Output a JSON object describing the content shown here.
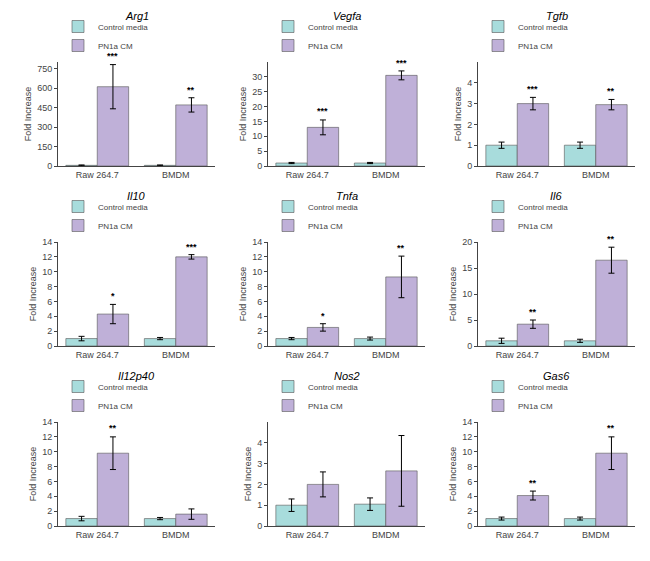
{
  "chart_data": [
    {
      "type": "bar",
      "title": "Arg1",
      "ylabel": "Fold Increase",
      "categories": [
        "Raw 264.7",
        "BMDM"
      ],
      "series": [
        {
          "name": "Control media",
          "color": "#A8DCDC",
          "values": [
            5,
            5
          ],
          "errors": [
            3,
            3
          ]
        },
        {
          "name": "PN1a CM",
          "color": "#BFB0D8",
          "values": [
            610,
            470
          ],
          "errors": [
            170,
            55
          ]
        }
      ],
      "ylim": [
        0,
        800
      ],
      "yticks": [
        0,
        150,
        300,
        450,
        600,
        750
      ],
      "grid": false,
      "legend": "upper left",
      "annotations": [
        {
          "text": "***",
          "category": "Raw 264.7",
          "series": "PN1a CM",
          "y": 790
        },
        {
          "text": "**",
          "category": "BMDM",
          "series": "PN1a CM",
          "y": 530
        }
      ]
    },
    {
      "type": "bar",
      "title": "Vegfa",
      "ylabel": "Fold Increase",
      "categories": [
        "Raw 264.7",
        "BMDM"
      ],
      "series": [
        {
          "name": "Control media",
          "color": "#A8DCDC",
          "values": [
            1,
            1
          ],
          "errors": [
            0.2,
            0.2
          ]
        },
        {
          "name": "PN1a CM",
          "color": "#BFB0D8",
          "values": [
            13,
            30.5
          ],
          "errors": [
            2.5,
            1.5
          ]
        }
      ],
      "ylim": [
        0,
        35
      ],
      "yticks": [
        0,
        5,
        10,
        15,
        20,
        25,
        30
      ],
      "grid": false,
      "legend": "upper left",
      "annotations": [
        {
          "text": "***",
          "category": "Raw 264.7",
          "series": "PN1a CM",
          "y": 16.2
        },
        {
          "text": "***",
          "category": "BMDM",
          "series": "PN1a CM",
          "y": 32.3
        }
      ]
    },
    {
      "type": "bar",
      "title": "Tgfb",
      "ylabel": "Fold Increase",
      "categories": [
        "Raw 264.7",
        "BMDM"
      ],
      "series": [
        {
          "name": "Control media",
          "color": "#A8DCDC",
          "values": [
            1.0,
            1.0
          ],
          "errors": [
            0.15,
            0.15
          ]
        },
        {
          "name": "PN1a CM",
          "color": "#BFB0D8",
          "values": [
            3.0,
            2.95
          ],
          "errors": [
            0.3,
            0.25
          ]
        }
      ],
      "ylim": [
        0,
        5
      ],
      "yticks": [
        0,
        1,
        2,
        3,
        4
      ],
      "grid": false,
      "legend": "upper left",
      "annotations": [
        {
          "text": "***",
          "category": "Raw 264.7",
          "series": "PN1a CM",
          "y": 3.38
        },
        {
          "text": "**",
          "category": "BMDM",
          "series": "PN1a CM",
          "y": 3.27
        }
      ]
    },
    {
      "type": "bar",
      "title": "Il10",
      "ylabel": "Fold Increase",
      "categories": [
        "Raw 264.7",
        "BMDM"
      ],
      "series": [
        {
          "name": "Control media",
          "color": "#A8DCDC",
          "values": [
            1,
            1
          ],
          "errors": [
            0.3,
            0.15
          ]
        },
        {
          "name": "PN1a CM",
          "color": "#BFB0D8",
          "values": [
            4.3,
            12.0
          ],
          "errors": [
            1.3,
            0.3
          ]
        }
      ],
      "ylim": [
        0,
        14
      ],
      "yticks": [
        0,
        2,
        4,
        6,
        8,
        10,
        12,
        14
      ],
      "grid": false,
      "legend": "upper left",
      "annotations": [
        {
          "text": "*",
          "category": "Raw 264.7",
          "series": "PN1a CM",
          "y": 5.85
        },
        {
          "text": "***",
          "category": "BMDM",
          "series": "PN1a CM",
          "y": 12.38
        }
      ]
    },
    {
      "type": "bar",
      "title": "Tnfa",
      "ylabel": "Fold Increase",
      "categories": [
        "Raw 264.7",
        "BMDM"
      ],
      "series": [
        {
          "name": "Control media",
          "color": "#A8DCDC",
          "values": [
            1,
            1
          ],
          "errors": [
            0.15,
            0.2
          ]
        },
        {
          "name": "PN1a CM",
          "color": "#BFB0D8",
          "values": [
            2.5,
            9.3
          ],
          "errors": [
            0.5,
            2.8
          ]
        }
      ],
      "ylim": [
        0,
        14
      ],
      "yticks": [
        0,
        2,
        4,
        6,
        8,
        10,
        12,
        14
      ],
      "grid": false,
      "legend": "upper left",
      "annotations": [
        {
          "text": "*",
          "category": "Raw 264.7",
          "series": "PN1a CM",
          "y": 3.1
        },
        {
          "text": "**",
          "category": "BMDM",
          "series": "PN1a CM",
          "y": 12.2
        }
      ]
    },
    {
      "type": "bar",
      "title": "Il6",
      "ylabel": "Fold Increase",
      "categories": [
        "Raw 264.7",
        "BMDM"
      ],
      "series": [
        {
          "name": "Control media",
          "color": "#A8DCDC",
          "values": [
            1,
            1
          ],
          "errors": [
            0.5,
            0.3
          ]
        },
        {
          "name": "PN1a CM",
          "color": "#BFB0D8",
          "values": [
            4.2,
            16.5
          ],
          "errors": [
            0.8,
            2.5
          ]
        }
      ],
      "ylim": [
        0,
        20
      ],
      "yticks": [
        0,
        5,
        10,
        15,
        20
      ],
      "grid": false,
      "legend": "upper left",
      "annotations": [
        {
          "text": "**",
          "category": "Raw 264.7",
          "series": "PN1a CM",
          "y": 5.2
        },
        {
          "text": "**",
          "category": "BMDM",
          "series": "PN1a CM",
          "y": 19.3
        }
      ]
    },
    {
      "type": "bar",
      "title": "Il12p40",
      "ylabel": "Fold Increase",
      "categories": [
        "Raw 264.7",
        "BMDM"
      ],
      "series": [
        {
          "name": "Control media",
          "color": "#A8DCDC",
          "values": [
            1,
            1
          ],
          "errors": [
            0.3,
            0.15
          ]
        },
        {
          "name": "PN1a CM",
          "color": "#BFB0D8",
          "values": [
            9.8,
            1.6
          ],
          "errors": [
            2.2,
            0.7
          ]
        }
      ],
      "ylim": [
        0,
        14
      ],
      "yticks": [
        0,
        2,
        4,
        6,
        8,
        10,
        12,
        14
      ],
      "grid": false,
      "legend": "upper left",
      "annotations": [
        {
          "text": "**",
          "category": "Raw 264.7",
          "series": "PN1a CM",
          "y": 12.2
        }
      ]
    },
    {
      "type": "bar",
      "title": "Nos2",
      "ylabel": "Fold Increase",
      "categories": [
        "Raw 264.7",
        "BMDM"
      ],
      "series": [
        {
          "name": "Control media",
          "color": "#A8DCDC",
          "values": [
            1.0,
            1.05
          ],
          "errors": [
            0.3,
            0.3
          ]
        },
        {
          "name": "PN1a CM",
          "color": "#BFB0D8",
          "values": [
            2.0,
            2.65
          ],
          "errors": [
            0.6,
            1.7
          ]
        }
      ],
      "ylim": [
        0,
        5
      ],
      "yticks": [
        0,
        1,
        2,
        3,
        4
      ],
      "grid": false,
      "legend": "upper left"
    },
    {
      "type": "bar",
      "title": "Gas6",
      "ylabel": "Fold Increase",
      "categories": [
        "Raw 264.7",
        "BMDM"
      ],
      "series": [
        {
          "name": "Control media",
          "color": "#A8DCDC",
          "values": [
            1,
            1
          ],
          "errors": [
            0.2,
            0.2
          ]
        },
        {
          "name": "PN1a CM",
          "color": "#BFB0D8",
          "values": [
            4.1,
            9.8
          ],
          "errors": [
            0.6,
            2.2
          ]
        }
      ],
      "ylim": [
        0,
        14
      ],
      "yticks": [
        0,
        2,
        4,
        6,
        8,
        10,
        12,
        14
      ],
      "grid": false,
      "legend": "upper left",
      "annotations": [
        {
          "text": "**",
          "category": "Raw 264.7",
          "series": "PN1a CM",
          "y": 4.85
        },
        {
          "text": "**",
          "category": "BMDM",
          "series": "PN1a CM",
          "y": 12.2
        }
      ]
    }
  ]
}
